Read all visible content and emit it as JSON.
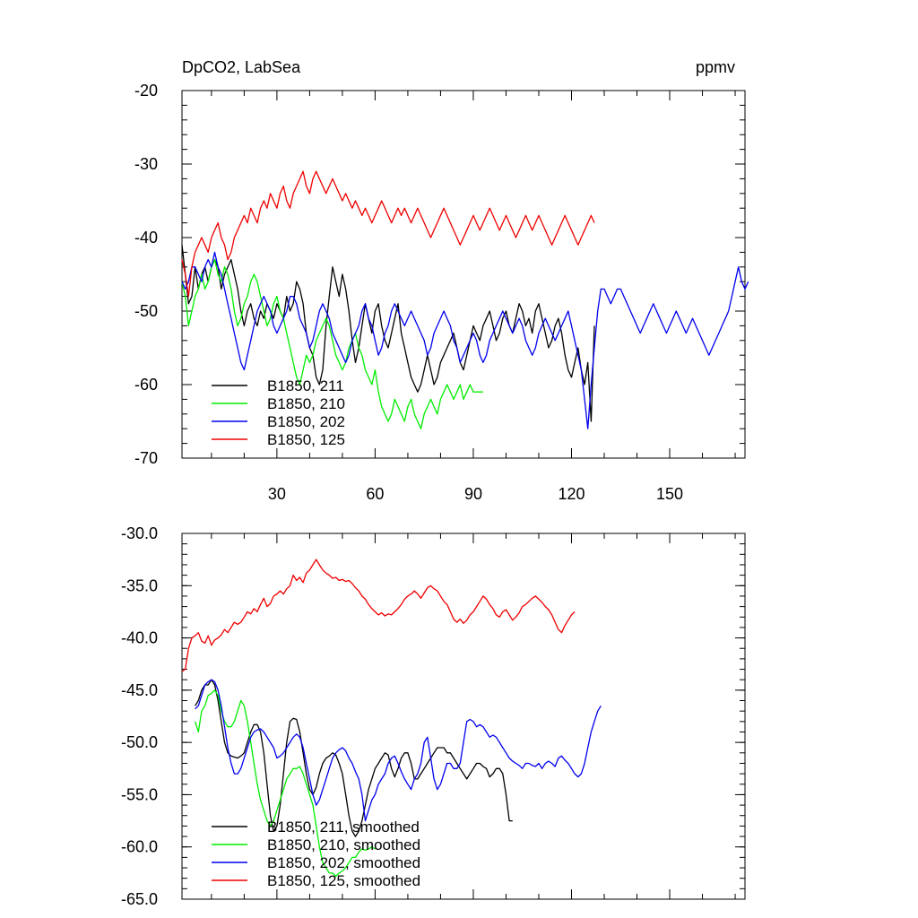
{
  "chart_data": [
    {
      "type": "line",
      "title": "DpCO2, LabSea",
      "units": "ppmv",
      "xlabel": "",
      "ylabel": "",
      "xlim": [
        1,
        173
      ],
      "ylim": [
        -70,
        -20
      ],
      "xticks": [
        30,
        60,
        90,
        120,
        150
      ],
      "xtick_labels": [
        "30",
        "60",
        "90",
        "120",
        "150"
      ],
      "yticks": [
        -20,
        -30,
        -40,
        -50,
        -60,
        -70
      ],
      "ytick_labels": [
        "-20",
        "-30",
        "-40",
        "-50",
        "-60",
        "-70"
      ],
      "legend_position": "bottom-left",
      "series": [
        {
          "name": "B1850, 211",
          "color": "#000000",
          "start": 1,
          "values": [
            -41,
            -45,
            -49,
            -48,
            -44,
            -47,
            -45,
            -44,
            -46,
            -44,
            -43,
            -44,
            -47,
            -45,
            -44,
            -43,
            -45,
            -47,
            -50,
            -52,
            -50,
            -49,
            -51,
            -52,
            -50,
            -51,
            -49,
            -50,
            -51,
            -49,
            -50,
            -51,
            -48,
            -50,
            -49,
            -46,
            -47,
            -49,
            -53,
            -55,
            -56,
            -59,
            -60,
            -58,
            -52,
            -48,
            -44,
            -46,
            -48,
            -45,
            -47,
            -50,
            -54,
            -57,
            -55,
            -52,
            -49,
            -51,
            -53,
            -50,
            -49,
            -52,
            -54,
            -55,
            -53,
            -51,
            -49,
            -53,
            -55,
            -57,
            -59,
            -60,
            -61,
            -60,
            -58,
            -56,
            -58,
            -60,
            -59,
            -57,
            -56,
            -55,
            -54,
            -53,
            -55,
            -57,
            -58,
            -56,
            -54,
            -52,
            -53,
            -54,
            -52,
            -51,
            -50,
            -52,
            -54,
            -53,
            -51,
            -50,
            -52,
            -53,
            -51,
            -49,
            -50,
            -52,
            -51,
            -53,
            -50,
            -49,
            -51,
            -53,
            -55,
            -54,
            -52,
            -51,
            -53,
            -56,
            -58,
            -59,
            -57,
            -55,
            -58,
            -60,
            -57,
            -65,
            -52
          ]
        },
        {
          "name": "B1850, 210",
          "color": "#00ee00",
          "start": 1,
          "values": [
            -46,
            -48,
            -52,
            -50,
            -48,
            -47,
            -45,
            -47,
            -46,
            -44,
            -43,
            -45,
            -46,
            -44,
            -45,
            -47,
            -50,
            -52,
            -51,
            -49,
            -48,
            -46,
            -45,
            -46,
            -48,
            -50,
            -52,
            -51,
            -49,
            -48,
            -50,
            -51,
            -53,
            -55,
            -57,
            -59,
            -60,
            -58,
            -56,
            -57,
            -56,
            -54,
            -53,
            -52,
            -51,
            -52,
            -54,
            -56,
            -57,
            -58,
            -57,
            -55,
            -54,
            -53,
            -55,
            -56,
            -58,
            -59,
            -60,
            -58,
            -61,
            -63,
            -64,
            -65,
            -64,
            -62,
            -63,
            -64,
            -65,
            -63,
            -62,
            -64,
            -65,
            -66,
            -64,
            -63,
            -62,
            -63,
            -64,
            -62,
            -61,
            -60,
            -61,
            -62,
            -61,
            -60,
            -62,
            -61,
            -60,
            -61,
            -61,
            -61,
            -61
          ]
        },
        {
          "name": "B1850, 202",
          "color": "#0000ee",
          "start": 1,
          "values": [
            -46,
            -47,
            -46,
            -44,
            -44,
            -45,
            -46,
            -44,
            -43,
            -44,
            -42,
            -44,
            -45,
            -47,
            -49,
            -51,
            -53,
            -55,
            -57,
            -58,
            -56,
            -54,
            -52,
            -50,
            -49,
            -48,
            -49,
            -50,
            -52,
            -53,
            -52,
            -51,
            -50,
            -48,
            -48,
            -49,
            -51,
            -52,
            -53,
            -55,
            -54,
            -52,
            -50,
            -49,
            -50,
            -51,
            -53,
            -54,
            -55,
            -56,
            -57,
            -56,
            -54,
            -53,
            -52,
            -50,
            -49,
            -51,
            -52,
            -54,
            -56,
            -55,
            -53,
            -52,
            -50,
            -49,
            -50,
            -51,
            -52,
            -51,
            -50,
            -51,
            -52,
            -53,
            -54,
            -56,
            -55,
            -53,
            -52,
            -51,
            -50,
            -51,
            -52,
            -54,
            -55,
            -57,
            -56,
            -55,
            -54,
            -53,
            -54,
            -56,
            -57,
            -56,
            -54,
            -53,
            -52,
            -51,
            -50,
            -51,
            -52,
            -53,
            -52,
            -51,
            -52,
            -54,
            -55,
            -56,
            -55,
            -53,
            -52,
            -51,
            -52,
            -53,
            -54,
            -53,
            -52,
            -51,
            -50,
            -52,
            -54,
            -56,
            -58,
            -62,
            -66,
            -60,
            -55,
            -50,
            -47,
            -47,
            -48,
            -49,
            -48,
            -47,
            -47,
            -48,
            -49,
            -50,
            -51,
            -52,
            -53,
            -52,
            -51,
            -50,
            -49,
            -50,
            -51,
            -52,
            -53,
            -52,
            -51,
            -50,
            -51,
            -52,
            -53,
            -52,
            -51,
            -52,
            -53,
            -54,
            -55,
            -56,
            -55,
            -54,
            -53,
            -52,
            -51,
            -50,
            -48,
            -46,
            -44,
            -46,
            -47,
            -46
          ]
        },
        {
          "name": "B1850, 125",
          "color": "#ee0000",
          "start": 1,
          "values": [
            -43,
            -45,
            -48,
            -44,
            -42,
            -41,
            -40,
            -41,
            -42,
            -40,
            -39,
            -38,
            -40,
            -41,
            -43,
            -42,
            -40,
            -39,
            -38,
            -37,
            -38,
            -36,
            -37,
            -38,
            -36,
            -35,
            -36,
            -34,
            -35,
            -36,
            -34,
            -33,
            -35,
            -36,
            -34,
            -33,
            -32,
            -31,
            -33,
            -34,
            -32,
            -31,
            -32,
            -33,
            -34,
            -33,
            -32,
            -33,
            -34,
            -35,
            -34,
            -35,
            -36,
            -35,
            -36,
            -37,
            -36,
            -37,
            -38,
            -37,
            -36,
            -35,
            -36,
            -37,
            -38,
            -37,
            -36,
            -37,
            -36,
            -37,
            -38,
            -37,
            -36,
            -37,
            -38,
            -39,
            -40,
            -39,
            -38,
            -37,
            -36,
            -37,
            -38,
            -39,
            -40,
            -41,
            -40,
            -39,
            -38,
            -37,
            -38,
            -39,
            -38,
            -37,
            -36,
            -37,
            -38,
            -39,
            -38,
            -37,
            -38,
            -39,
            -40,
            -39,
            -38,
            -37,
            -38,
            -39,
            -38,
            -37,
            -38,
            -39,
            -40,
            -41,
            -40,
            -39,
            -38,
            -37,
            -38,
            -39,
            -40,
            -41,
            -40,
            -39,
            -38,
            -37,
            -38
          ]
        }
      ]
    },
    {
      "type": "line",
      "title": "",
      "xlabel": "",
      "ylabel": "",
      "xlim": [
        1,
        173
      ],
      "ylim": [
        -65,
        -30
      ],
      "xticks": [
        30,
        60,
        90,
        120,
        150
      ],
      "yticks": [
        -30,
        -35,
        -40,
        -45,
        -50,
        -55,
        -60,
        -65
      ],
      "ytick_labels": [
        "-30.0",
        "-35.0",
        "-40.0",
        "-45.0",
        "-50.0",
        "-55.0",
        "-60.0",
        "-65.0"
      ],
      "legend_position": "bottom-left",
      "series": [
        {
          "name": "B1850, 211, smoothed",
          "color": "#000000",
          "start": 5,
          "values": [
            -46.5,
            -46,
            -45,
            -44.5,
            -44.5,
            -44,
            -44.5,
            -46,
            -48,
            -50,
            -51,
            -51.3,
            -51.4,
            -51.5,
            -51.3,
            -51,
            -50,
            -49,
            -48.3,
            -48.3,
            -49,
            -51,
            -54,
            -57,
            -58.5,
            -58,
            -56,
            -53,
            -50,
            -48,
            -47.7,
            -47.8,
            -49,
            -51,
            -53,
            -54.5,
            -55,
            -54.3,
            -53,
            -52,
            -51.5,
            -51.3,
            -51,
            -51.2,
            -52,
            -53,
            -55,
            -57,
            -58.5,
            -59,
            -58.5,
            -57.5,
            -56,
            -54.5,
            -53.5,
            -52.5,
            -52,
            -51.5,
            -51,
            -51.2,
            -52.5,
            -53.3,
            -52.5,
            -51.5,
            -51,
            -51,
            -52,
            -53.5,
            -53.5,
            -53,
            -52.5,
            -52,
            -51.5,
            -51,
            -50.5,
            -50.5,
            -50.5,
            -51,
            -51,
            -51.5,
            -52,
            -52.5,
            -53,
            -53.5,
            -53,
            -52.5,
            -52,
            -52,
            -52.3,
            -52.5,
            -53.3,
            -53,
            -52.5,
            -52.5,
            -53,
            -55,
            -57.5,
            -57.5
          ]
        },
        {
          "name": "B1850, 210, smoothed",
          "color": "#00ee00",
          "start": 5,
          "values": [
            -48,
            -49,
            -47,
            -46.5,
            -45.5,
            -45.3,
            -45,
            -45.5,
            -47,
            -48,
            -48.5,
            -48.5,
            -48,
            -47,
            -46,
            -46.5,
            -48,
            -50,
            -52,
            -54,
            -55.5,
            -56.5,
            -57.5,
            -58,
            -57.5,
            -56.5,
            -55.5,
            -54.5,
            -53.5,
            -53,
            -52.5,
            -52.5,
            -52.3,
            -53,
            -54,
            -55,
            -56,
            -58,
            -60,
            -61.5,
            -62,
            -62.5,
            -62.5,
            -62.8,
            -62.5,
            -62.3,
            -62,
            -61.5,
            -61,
            -61,
            -60.5,
            -60.2,
            -60.3,
            -60.2,
            -60,
            -60.2
          ]
        },
        {
          "name": "B1850, 202, smoothed",
          "color": "#0000ee",
          "start": 5,
          "values": [
            -46.8,
            -46.5,
            -45.5,
            -44.5,
            -44.2,
            -44,
            -44.2,
            -45,
            -46.5,
            -48.5,
            -50.5,
            -52,
            -53,
            -53,
            -52.5,
            -51.5,
            -50.5,
            -49.5,
            -49,
            -48.8,
            -48.7,
            -49,
            -49.5,
            -50,
            -50.5,
            -51.5,
            -51.3,
            -51,
            -50.5,
            -50,
            -49.5,
            -49.2,
            -49.5,
            -50.5,
            -52,
            -53.5,
            -55,
            -56,
            -55.5,
            -54.5,
            -53.5,
            -52.5,
            -51.5,
            -51,
            -50.7,
            -50.5,
            -50.8,
            -51.5,
            -52,
            -52.8,
            -53.5,
            -55,
            -57.5,
            -56.5,
            -55.5,
            -55,
            -54,
            -53.5,
            -53,
            -52,
            -51.5,
            -51.3,
            -52,
            -52.8,
            -53.5,
            -54,
            -54.5,
            -53.5,
            -53,
            -52,
            -50,
            -49.5,
            -51.5,
            -53.5,
            -54.5,
            -54,
            -53,
            -52,
            -52,
            -52.5,
            -52.5,
            -52,
            -50,
            -48,
            -47.8,
            -48,
            -48.5,
            -48.3,
            -48.5,
            -49,
            -49.5,
            -49.3,
            -49.5,
            -50,
            -50.5,
            -51,
            -51.5,
            -51.8,
            -52,
            -52.2,
            -52.5,
            -52,
            -52,
            -52.2,
            -52.3,
            -52,
            -52.5,
            -52,
            -51.8,
            -52,
            -52.3,
            -51.5,
            -51.3,
            -51.7,
            -52,
            -52.5,
            -53,
            -53.3,
            -53,
            -52,
            -50.5,
            -49,
            -48,
            -47,
            -46.5
          ]
        },
        {
          "name": "B1850, 125, smoothed",
          "color": "#ee0000",
          "start": 1,
          "values": [
            -43.2,
            -43,
            -41,
            -40,
            -39.8,
            -39.5,
            -40.3,
            -40.5,
            -39.8,
            -40.7,
            -40.2,
            -40,
            -39.7,
            -39.2,
            -39.5,
            -39,
            -38.5,
            -38.7,
            -38.5,
            -38,
            -37.5,
            -37.7,
            -37.2,
            -37.5,
            -36.8,
            -36.2,
            -37,
            -36.7,
            -36,
            -35.8,
            -35.5,
            -35.8,
            -35.3,
            -35,
            -34,
            -34.5,
            -34.2,
            -34.7,
            -33.8,
            -33.5,
            -33,
            -32.5,
            -33,
            -33.5,
            -33.8,
            -34,
            -34.3,
            -34.2,
            -34.5,
            -34.4,
            -34.6,
            -34.5,
            -34.8,
            -35.2,
            -35.5,
            -36,
            -36.3,
            -36.8,
            -37.2,
            -37.5,
            -37.8,
            -37.6,
            -37.9,
            -37.7,
            -37.8,
            -37.5,
            -37.2,
            -36.8,
            -36.3,
            -36,
            -35.8,
            -35.5,
            -35.8,
            -36.2,
            -35.7,
            -35.2,
            -35,
            -35.3,
            -35.5,
            -36,
            -36.5,
            -36.8,
            -37.5,
            -38.2,
            -38.5,
            -38.2,
            -38.6,
            -38.3,
            -37.8,
            -37.5,
            -37,
            -36.5,
            -36,
            -36.3,
            -36.8,
            -37.2,
            -37.8,
            -38,
            -37.5,
            -37.3,
            -37.8,
            -38.3,
            -38,
            -37.6,
            -37,
            -36.8,
            -36.5,
            -36.2,
            -36,
            -36.3,
            -36.6,
            -37,
            -37.3,
            -37.8,
            -38.5,
            -39.2,
            -39.5,
            -38.8,
            -38.3,
            -37.8,
            -37.5
          ]
        }
      ]
    }
  ]
}
